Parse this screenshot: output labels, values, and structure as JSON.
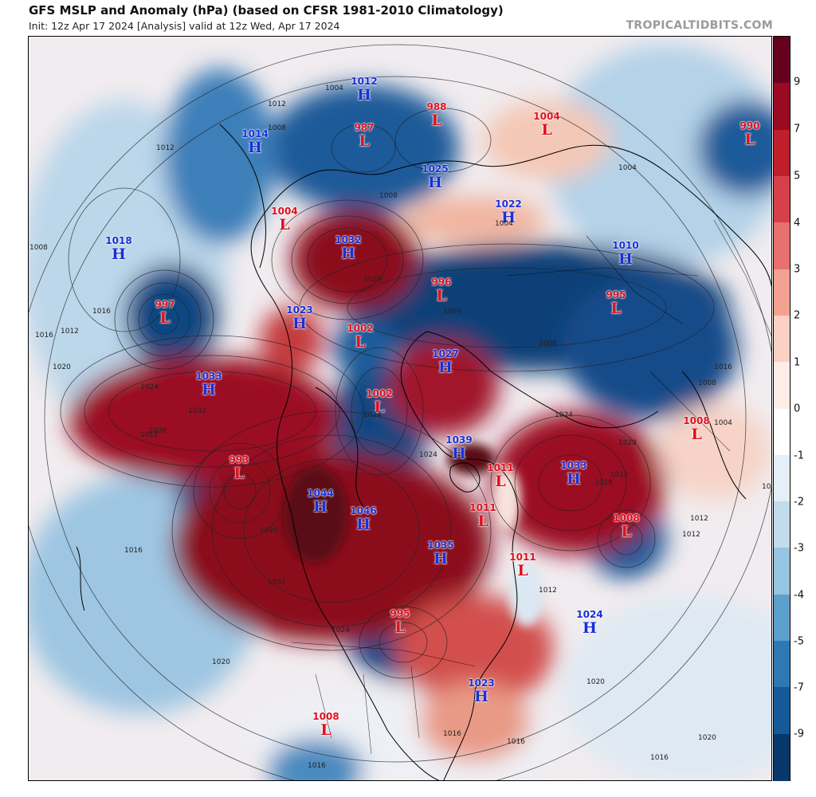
{
  "header": {
    "title": "GFS MSLP and Anomaly (hPa) (based on CFSR 1981-2010 Climatology)",
    "subtitle": "Init: 12z Apr 17 2024   [Analysis]   valid at 12z Wed, Apr 17 2024",
    "credit": "TROPICALTIDBITS.COM"
  },
  "colorbar": {
    "ticks": [
      "9",
      "7",
      "5",
      "4",
      "3",
      "2",
      "1",
      "0",
      "-1",
      "-2",
      "-3",
      "-4",
      "-5",
      "-7",
      "-9"
    ],
    "colors": [
      "#67001f",
      "#9b0a23",
      "#c01e2b",
      "#d6404a",
      "#e8706e",
      "#f3a291",
      "#fad1c2",
      "#fdeee7",
      "#ffffff",
      "#e5eff7",
      "#c2dcec",
      "#95c5e0",
      "#5c9fcc",
      "#2e79b5",
      "#145a99",
      "#08386b"
    ]
  },
  "centers": [
    {
      "type": "H",
      "value": "1012"
    },
    {
      "type": "L",
      "value": "988"
    },
    {
      "type": "L",
      "value": "987"
    },
    {
      "type": "H",
      "value": "1014"
    },
    {
      "type": "L",
      "value": "1004"
    },
    {
      "type": "L",
      "value": "990"
    },
    {
      "type": "H",
      "value": "1025"
    },
    {
      "type": "H",
      "value": "1022"
    },
    {
      "type": "L",
      "value": "1004"
    },
    {
      "type": "H",
      "value": "1018"
    },
    {
      "type": "H",
      "value": "1032"
    },
    {
      "type": "H",
      "value": "1010"
    },
    {
      "type": "L",
      "value": "997"
    },
    {
      "type": "L",
      "value": "996"
    },
    {
      "type": "L",
      "value": "995"
    },
    {
      "type": "H",
      "value": "1023"
    },
    {
      "type": "L",
      "value": "1002"
    },
    {
      "type": "H",
      "value": "1027"
    },
    {
      "type": "H",
      "value": "1033"
    },
    {
      "type": "L",
      "value": "1002"
    },
    {
      "type": "L",
      "value": "1008"
    },
    {
      "type": "L",
      "value": "993"
    },
    {
      "type": "H",
      "value": "1039"
    },
    {
      "type": "L",
      "value": "1011"
    },
    {
      "type": "H",
      "value": "1033"
    },
    {
      "type": "H",
      "value": "1044"
    },
    {
      "type": "H",
      "value": "1046"
    },
    {
      "type": "L",
      "value": "1011"
    },
    {
      "type": "L",
      "value": "1008"
    },
    {
      "type": "H",
      "value": "1035"
    },
    {
      "type": "L",
      "value": "1011"
    },
    {
      "type": "L",
      "value": "995"
    },
    {
      "type": "H",
      "value": "1024"
    },
    {
      "type": "H",
      "value": "1023"
    },
    {
      "type": "L",
      "value": "1008"
    }
  ],
  "isobar_labels": [
    "1004",
    "1008",
    "1012",
    "1016",
    "1020",
    "1024",
    "1028",
    "1032"
  ]
}
